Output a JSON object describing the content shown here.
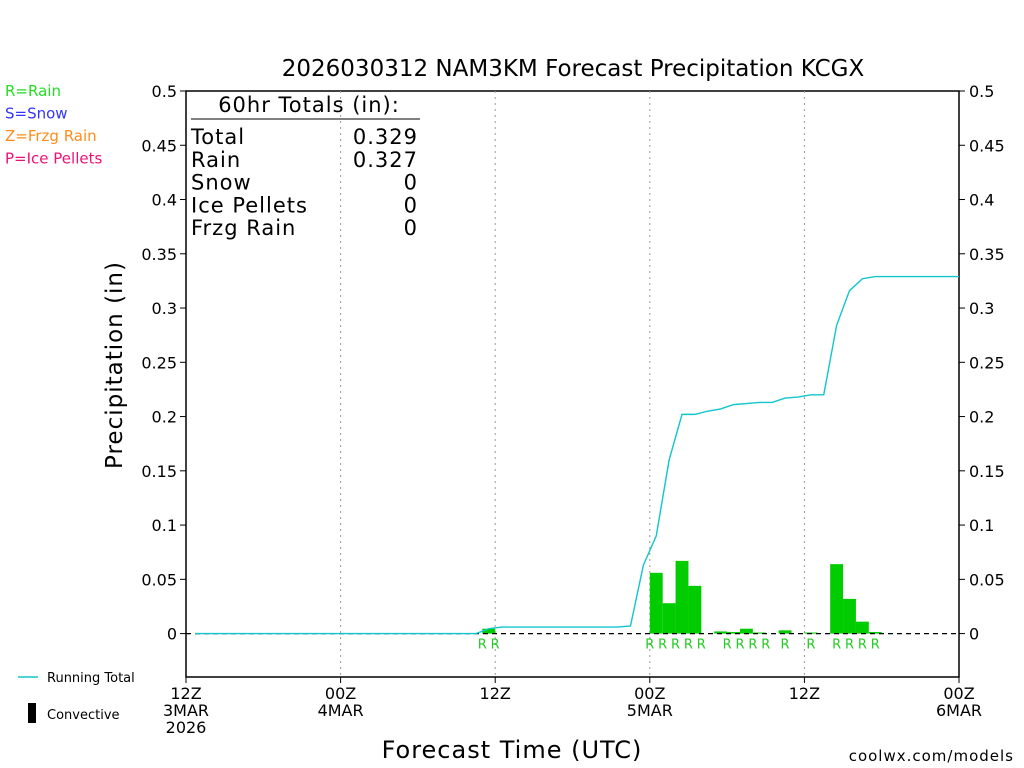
{
  "chart_data": {
    "type": "bar",
    "title": "2026030312 NAM3KM Forecast Precipitation KCGX",
    "xlabel": "Forecast Time (UTC)",
    "ylabel": "Precipitation (in)",
    "ylim": [
      -0.04,
      0.5
    ],
    "xlim_hours": [
      0,
      60
    ],
    "y_ticks": [
      {
        "value": 0,
        "label": "0"
      },
      {
        "value": 0.05,
        "label": "0.05"
      },
      {
        "value": 0.1,
        "label": "0.1"
      },
      {
        "value": 0.15,
        "label": "0.15"
      },
      {
        "value": 0.2,
        "label": "0.2"
      },
      {
        "value": 0.25,
        "label": "0.25"
      },
      {
        "value": 0.3,
        "label": "0.3"
      },
      {
        "value": 0.35,
        "label": "0.35"
      },
      {
        "value": 0.4,
        "label": "0.4"
      },
      {
        "value": 0.45,
        "label": "0.45"
      },
      {
        "value": 0.5,
        "label": "0.5"
      }
    ],
    "x_ticks": [
      {
        "hour": 0,
        "lines": [
          "12Z",
          "3MAR",
          "2026"
        ]
      },
      {
        "hour": 12,
        "lines": [
          "00Z",
          "4MAR"
        ]
      },
      {
        "hour": 24,
        "lines": [
          "12Z"
        ]
      },
      {
        "hour": 36,
        "lines": [
          "00Z",
          "5MAR"
        ]
      },
      {
        "hour": 48,
        "lines": [
          "12Z"
        ]
      },
      {
        "hour": 60,
        "lines": [
          "00Z",
          "6MAR"
        ]
      }
    ],
    "grid_hours": [
      12,
      24,
      36,
      48
    ],
    "bars": [
      {
        "hour": 23.5,
        "value": 0.0045
      },
      {
        "hour": 36.5,
        "value": 0.056
      },
      {
        "hour": 37.5,
        "value": 0.028
      },
      {
        "hour": 38.5,
        "value": 0.067
      },
      {
        "hour": 39.5,
        "value": 0.044
      },
      {
        "hour": 41.5,
        "value": 0.002
      },
      {
        "hour": 42.5,
        "value": 0.0015
      },
      {
        "hour": 43.5,
        "value": 0.0045
      },
      {
        "hour": 44.5,
        "value": 0.001
      },
      {
        "hour": 46.5,
        "value": 0.003
      },
      {
        "hour": 48.5,
        "value": 0.001
      },
      {
        "hour": 50.5,
        "value": 0.064
      },
      {
        "hour": 51.5,
        "value": 0.032
      },
      {
        "hour": 52.5,
        "value": 0.011
      },
      {
        "hour": 53.5,
        "value": 0.0015
      }
    ],
    "ptype_marks": [
      {
        "hour": 23,
        "label": "R"
      },
      {
        "hour": 24,
        "label": "R"
      },
      {
        "hour": 36,
        "label": "R"
      },
      {
        "hour": 37,
        "label": "R"
      },
      {
        "hour": 38,
        "label": "R"
      },
      {
        "hour": 39,
        "label": "R"
      },
      {
        "hour": 40,
        "label": "R"
      },
      {
        "hour": 42,
        "label": "R"
      },
      {
        "hour": 43,
        "label": "R"
      },
      {
        "hour": 44,
        "label": "R"
      },
      {
        "hour": 45,
        "label": "R"
      },
      {
        "hour": 46.5,
        "label": "R"
      },
      {
        "hour": 48.5,
        "label": "R"
      },
      {
        "hour": 50.5,
        "label": "R"
      },
      {
        "hour": 51.5,
        "label": "R"
      },
      {
        "hour": 52.5,
        "label": "R"
      },
      {
        "hour": 53.5,
        "label": "R"
      }
    ],
    "running_total": {
      "name": "Running Total",
      "points": [
        [
          0.7,
          0
        ],
        [
          22.5,
          0
        ],
        [
          23.5,
          0.0045
        ],
        [
          24.5,
          0.006
        ],
        [
          33.5,
          0.006
        ],
        [
          34.5,
          0.007
        ],
        [
          35.5,
          0.063
        ],
        [
          36.5,
          0.09
        ],
        [
          37.5,
          0.16
        ],
        [
          38.5,
          0.202
        ],
        [
          39.5,
          0.202
        ],
        [
          40.5,
          0.205
        ],
        [
          41.5,
          0.207
        ],
        [
          42.5,
          0.211
        ],
        [
          43.5,
          0.212
        ],
        [
          44.5,
          0.213
        ],
        [
          45.5,
          0.213
        ],
        [
          46.5,
          0.217
        ],
        [
          47.5,
          0.218
        ],
        [
          48.5,
          0.22
        ],
        [
          49.5,
          0.22
        ],
        [
          50.5,
          0.284
        ],
        [
          51.5,
          0.316
        ],
        [
          52.5,
          0.327
        ],
        [
          53.5,
          0.329
        ],
        [
          60,
          0.329
        ]
      ]
    },
    "totals_box": {
      "header": "60hr Totals (in):",
      "rows": [
        {
          "label": "Total",
          "value": "0.329"
        },
        {
          "label": "Rain",
          "value": "0.327"
        },
        {
          "label": "Snow",
          "value": "0"
        },
        {
          "label": "Ice Pellets",
          "value": "0"
        },
        {
          "label": "Frzg Rain",
          "value": "0"
        }
      ]
    },
    "ptype_legend": [
      {
        "text": "R=Rain",
        "color": "#22dd22"
      },
      {
        "text": "S=Snow",
        "color": "#3333ff"
      },
      {
        "text": "Z=Frzg Rain",
        "color": "#ff8c1a"
      },
      {
        "text": "P=Ice Pellets",
        "color": "#ee1177"
      }
    ],
    "bottom_legend": {
      "running_total": "Running Total",
      "convective": "Convective"
    },
    "credit": "coolwx.com/models",
    "colors": {
      "bar": "#00cc00",
      "line": "#11c5cc",
      "ptype_text": "#22cc22",
      "credit": "#e03030",
      "axis": "#000000"
    }
  }
}
